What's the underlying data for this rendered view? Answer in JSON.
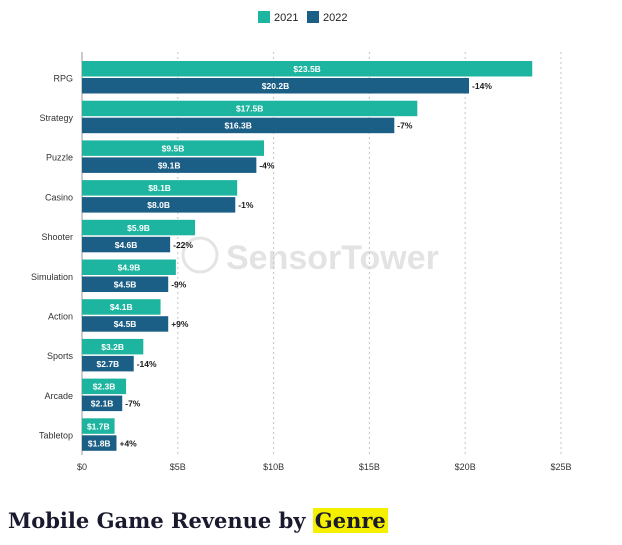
{
  "chart_data": {
    "type": "bar",
    "orientation": "horizontal",
    "categories": [
      "RPG",
      "Strategy",
      "Puzzle",
      "Casino",
      "Shooter",
      "Simulation",
      "Action",
      "Sports",
      "Arcade",
      "Tabletop"
    ],
    "series": [
      {
        "name": "2021",
        "color": "#1eb5a0",
        "values": [
          23.5,
          17.5,
          9.5,
          8.1,
          5.9,
          4.9,
          4.1,
          3.2,
          2.3,
          1.7
        ],
        "labels": [
          "$23.5B",
          "$17.5B",
          "$9.5B",
          "$8.1B",
          "$5.9B",
          "$4.9B",
          "$4.1B",
          "$3.2B",
          "$2.3B",
          "$1.7B"
        ]
      },
      {
        "name": "2022",
        "color": "#1c5f86",
        "values": [
          20.2,
          16.3,
          9.1,
          8.0,
          4.6,
          4.5,
          4.5,
          2.7,
          2.1,
          1.8
        ],
        "labels": [
          "$20.2B",
          "$16.3B",
          "$9.1B",
          "$8.0B",
          "$4.6B",
          "$4.5B",
          "$4.5B",
          "$2.7B",
          "$2.1B",
          "$1.8B"
        ]
      }
    ],
    "change_labels": [
      "-14%",
      "-7%",
      "-4%",
      "-1%",
      "-22%",
      "-9%",
      "+9%",
      "-14%",
      "-7%",
      "+4%"
    ],
    "xlim": [
      0,
      25
    ],
    "xticks": [
      0,
      5,
      10,
      15,
      20,
      25
    ],
    "xtick_labels": [
      "$0",
      "$5B",
      "$10B",
      "$15B",
      "$20B",
      "$25B"
    ],
    "grid": "vertical-dashed",
    "legend_position": "top-center",
    "watermark": "SensorTower"
  },
  "title": {
    "prefix": "Mobile Game Revenue by ",
    "highlight": "Genre"
  }
}
